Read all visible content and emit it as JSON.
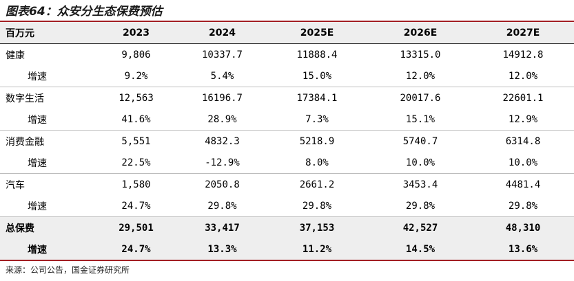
{
  "title": "图表64：众安分生态保费预估",
  "table": {
    "header": {
      "unit": "百万元",
      "years": [
        "2023",
        "2024",
        "2025E",
        "2026E",
        "2027E"
      ]
    },
    "rows": [
      {
        "label": "健康",
        "values": [
          "9,806",
          "10337.7",
          "11888.4",
          "13315.0",
          "14912.8"
        ]
      },
      {
        "label": "增速",
        "values": [
          "9.2%",
          "5.4%",
          "15.0%",
          "12.0%",
          "12.0%"
        ]
      },
      {
        "label": "数字生活",
        "values": [
          "12,563",
          "16196.7",
          "17384.1",
          "20017.6",
          "22601.1"
        ]
      },
      {
        "label": "增速",
        "values": [
          "41.6%",
          "28.9%",
          "7.3%",
          "15.1%",
          "12.9%"
        ]
      },
      {
        "label": "消费金融",
        "values": [
          "5,551",
          "4832.3",
          "5218.9",
          "5740.7",
          "6314.8"
        ]
      },
      {
        "label": "增速",
        "values": [
          "22.5%",
          "-12.9%",
          "8.0%",
          "10.0%",
          "10.0%"
        ]
      },
      {
        "label": "汽车",
        "values": [
          "1,580",
          "2050.8",
          "2661.2",
          "3453.4",
          "4481.4"
        ]
      },
      {
        "label": "增速",
        "values": [
          "24.7%",
          "29.8%",
          "29.8%",
          "29.8%",
          "29.8%"
        ]
      },
      {
        "label": "总保费",
        "values": [
          "29,501",
          "33,417",
          "37,153",
          "42,527",
          "48,310"
        ]
      },
      {
        "label": "增速",
        "values": [
          "24.7%",
          "13.3%",
          "11.2%",
          "14.5%",
          "13.6%"
        ]
      }
    ]
  },
  "source": "来源：公司公告，国金证券研究所",
  "colors": {
    "accent_rule": "#a31f24",
    "header_bg": "#eeeeee"
  }
}
